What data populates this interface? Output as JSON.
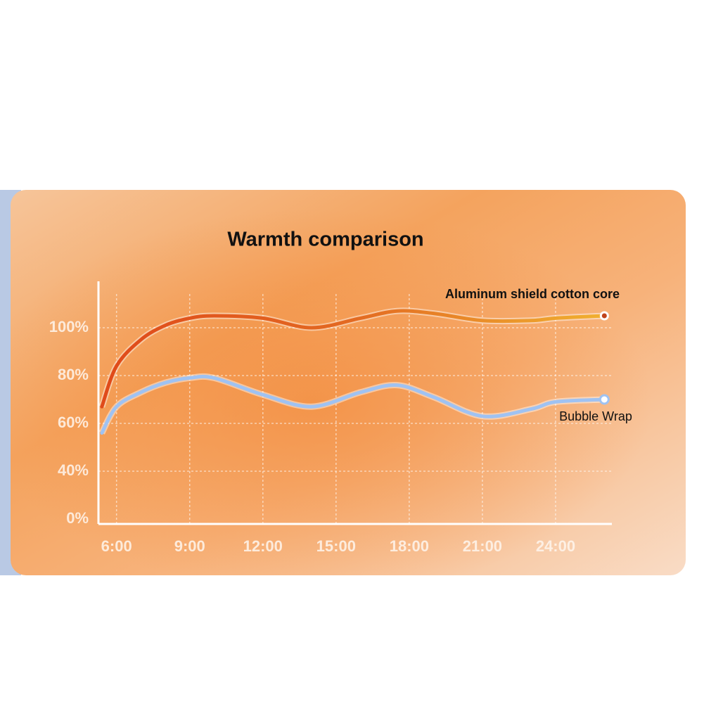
{
  "chart_data": {
    "type": "line",
    "title": "Warmth comparison",
    "x": [
      5.4,
      6,
      7,
      8,
      9,
      10,
      12,
      14,
      16,
      17.5,
      19,
      21,
      23,
      24,
      26
    ],
    "series": [
      {
        "name": "Aluminum shield cotton core",
        "color": "#e2561c",
        "values": [
          67,
          84,
          95,
          101,
          104,
          105,
          104,
          100,
          104,
          107,
          106,
          103,
          103,
          104,
          105
        ]
      },
      {
        "name": "Bubble Wrap",
        "color": "#9fc2f2",
        "values": [
          56,
          67,
          73,
          77,
          79,
          79,
          72,
          67,
          73,
          76,
          71,
          63,
          66,
          69,
          70
        ]
      }
    ],
    "xlim": [
      5,
      27
    ],
    "xticks": [
      {
        "value": 6,
        "label": "6:00"
      },
      {
        "value": 9,
        "label": "9:00"
      },
      {
        "value": 12,
        "label": "12:00"
      },
      {
        "value": 15,
        "label": "15:00"
      },
      {
        "value": 18,
        "label": "18:00"
      },
      {
        "value": 21,
        "label": "21:00"
      },
      {
        "value": 24,
        "label": "24:00"
      }
    ],
    "ylim": [
      0,
      120
    ],
    "yticks": [
      {
        "value": 0,
        "label": "0%"
      },
      {
        "value": 40,
        "label": "40%"
      },
      {
        "value": 60,
        "label": "60%"
      },
      {
        "value": 80,
        "label": "80%"
      },
      {
        "value": 100,
        "label": "100%"
      }
    ],
    "grid": true
  }
}
